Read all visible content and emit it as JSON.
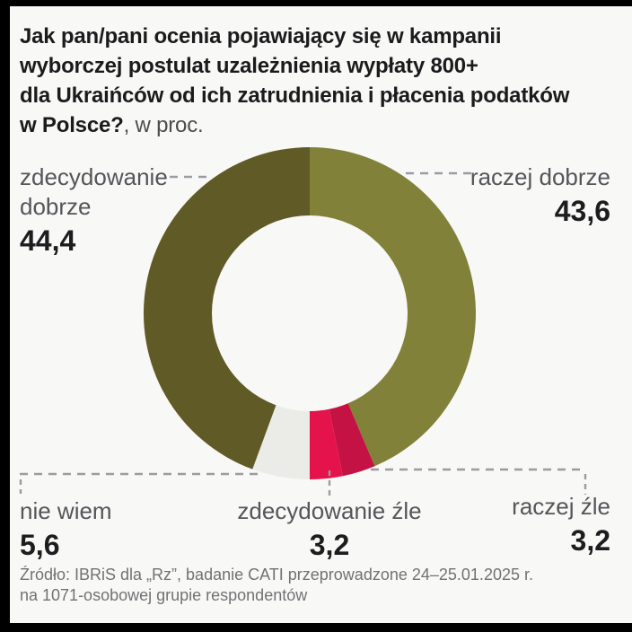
{
  "title": {
    "line1": "Jak pan/pani ocenia pojawiający się w kampanii",
    "line2": "wyborczej postulat uzależnienia wypłaty 800+",
    "line3": "dla Ukraińców od ich zatrudnienia i płacenia podatków",
    "line4_bold": "w Polsce?",
    "line4_suffix": ", w proc."
  },
  "chart_data": {
    "type": "pie",
    "variant": "donut",
    "unit": "proc.",
    "direction": "clockwise",
    "start_angle_deg": 0,
    "segments": [
      {
        "label": "raczej dobrze",
        "value": 43.6,
        "display": "43,6",
        "color": "#82813a"
      },
      {
        "label": "raczej źle",
        "value": 3.2,
        "display": "3,2",
        "color": "#c31243"
      },
      {
        "label": "zdecydowanie źle",
        "value": 3.2,
        "display": "3,2",
        "color": "#e5134c"
      },
      {
        "label": "nie wiem",
        "value": 5.6,
        "display": "5,6",
        "color": "#ebebe8"
      },
      {
        "label": "zdecydowanie dobrze",
        "value": 44.4,
        "display": "44,4",
        "color": "#605a26"
      }
    ]
  },
  "callouts": {
    "top_left": {
      "line1": "zdecydowanie",
      "line2": "dobrze",
      "value": "44,4"
    },
    "top_right": {
      "line1": "raczej dobrze",
      "value": "43,6"
    },
    "bottom_left": {
      "line1": "nie wiem",
      "value": "5,6"
    },
    "bottom_center": {
      "line1": "zdecydowanie źle",
      "value": "3,2"
    },
    "bottom_right": {
      "line1": "raczej źle",
      "value": "3,2"
    }
  },
  "source": {
    "line1": "Źródło: IBRiS dla „Rz”, badanie CATI przeprowadzone 24–25.01.2025 r.",
    "line2": "na 1071-osobowej grupie respondentów"
  },
  "colors": {
    "background": "#f8f8f6",
    "frame": "#000000",
    "title_text": "#1b1b1d",
    "label_text": "#55555a",
    "value_text": "#1d1d20",
    "source_text": "#727275",
    "leader_line": "#9b9ba3"
  }
}
